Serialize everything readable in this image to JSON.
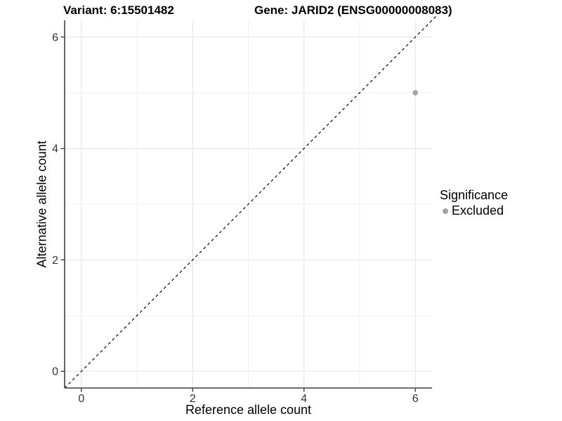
{
  "titles": {
    "variant": "Variant: 6:15501482",
    "gene": "Gene: JARID2 (ENSG00000008083)"
  },
  "axes": {
    "x_label": "Reference allele count",
    "y_label": "Alternative allele count"
  },
  "legend": {
    "title": "Significance",
    "items": [
      {
        "label": "Excluded",
        "color": "#a4a4a4"
      }
    ]
  },
  "colors": {
    "point": "#a4a4a4",
    "identity_line": "#141414",
    "axis_line": "#3f3f3f",
    "tick_label": "#333333",
    "grid_major": "#e4e4e4",
    "grid_minor": "#f1f1f1",
    "background": "#ffffff"
  },
  "chart_data": {
    "type": "scatter",
    "title_left": "Variant: 6:15501482",
    "title_right": "Gene: JARID2 (ENSG00000008083)",
    "xlabel": "Reference allele count",
    "ylabel": "Alternative allele count",
    "xlim": [
      -0.3,
      6.3
    ],
    "ylim": [
      -0.3,
      6.3
    ],
    "x_ticks": [
      0,
      2,
      4,
      6
    ],
    "y_ticks": [
      0,
      2,
      4,
      6
    ],
    "x_minor_ticks": [
      1,
      3,
      5
    ],
    "y_minor_ticks": [
      1,
      3,
      5
    ],
    "grid": true,
    "legend_position": "right",
    "legend_title": "Significance",
    "series": [
      {
        "name": "Excluded",
        "color": "#a4a4a4",
        "points": [
          {
            "x": 6,
            "y": 5
          }
        ]
      }
    ],
    "reference_line": {
      "type": "identity",
      "slope": 1,
      "intercept": 0,
      "style": "dashed",
      "color": "#141414"
    }
  }
}
